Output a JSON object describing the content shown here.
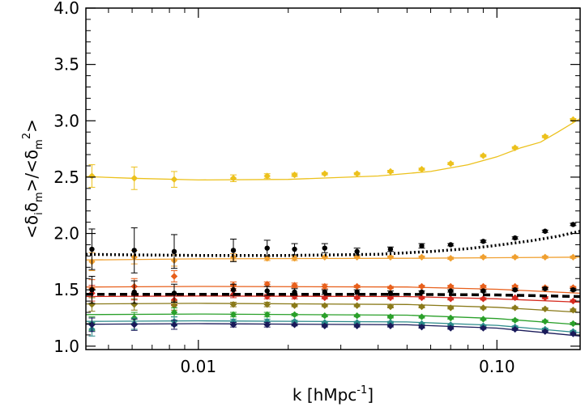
{
  "chart_data": {
    "type": "scatter",
    "title": "",
    "xlabel": {
      "main": "k [hMpc",
      "sup": "-1",
      "close": "]"
    },
    "ylabel": "<δ_i δ_m>/<δ_m^2>",
    "xscale": "log",
    "xlim": [
      0.0042,
      0.19
    ],
    "ylim": [
      0.97,
      4.0
    ],
    "xticks": [
      {
        "value": 0.01,
        "label": "0.01"
      },
      {
        "value": 0.1,
        "label": "0.10"
      }
    ],
    "yticks": [
      {
        "value": 1.0,
        "label": "1.0"
      },
      {
        "value": 1.5,
        "label": "1.5"
      },
      {
        "value": 2.0,
        "label": "2.0"
      },
      {
        "value": 2.5,
        "label": "2.5"
      },
      {
        "value": 3.0,
        "label": "3.0"
      },
      {
        "value": 3.5,
        "label": "3.5"
      },
      {
        "value": 4.0,
        "label": "4.0"
      }
    ],
    "grid": false,
    "legend": "none",
    "k_points": [
      0.0044,
      0.0061,
      0.0083,
      0.0131,
      0.017,
      0.021,
      0.0265,
      0.034,
      0.044,
      0.056,
      0.07,
      0.09,
      0.115,
      0.145,
      0.18
    ],
    "series": [
      {
        "color": "#ecc11c",
        "marker": "diamond",
        "values": [
          2.51,
          2.49,
          2.48,
          2.49,
          2.51,
          2.52,
          2.53,
          2.53,
          2.55,
          2.57,
          2.62,
          2.69,
          2.76,
          2.86,
          3.01
        ],
        "errors": [
          0.1,
          0.1,
          0.07,
          0.03,
          0.02,
          0.015,
          0.01,
          0.01,
          0.01,
          0.01,
          0.01,
          0.01,
          0.01,
          0.01,
          0.01
        ],
        "model_k": [
          0.0042,
          0.006,
          0.01,
          0.02,
          0.04,
          0.06,
          0.08,
          0.1,
          0.12,
          0.14,
          0.16,
          0.19
        ],
        "model_values": [
          2.505,
          2.49,
          2.475,
          2.48,
          2.51,
          2.55,
          2.61,
          2.68,
          2.76,
          2.81,
          2.9,
          3.02
        ]
      },
      {
        "color": "#f0a030",
        "marker": "diamond",
        "values": [
          1.75,
          1.79,
          1.76,
          1.79,
          1.78,
          1.78,
          1.79,
          1.79,
          1.79,
          1.79,
          1.78,
          1.79,
          1.79,
          1.79,
          1.79
        ],
        "errors": [
          0.08,
          0.06,
          0.05,
          0.03,
          0.02,
          0.02,
          0.01,
          0.01,
          0.01,
          0.01,
          0.01,
          0.01,
          0.01,
          0.01,
          0.01
        ],
        "model_k": [
          0.0042,
          0.01,
          0.05,
          0.1,
          0.19
        ],
        "model_values": [
          1.765,
          1.775,
          1.78,
          1.785,
          1.79
        ]
      },
      {
        "color": "#e8601c",
        "marker": "diamond",
        "values": [
          1.51,
          1.53,
          1.62,
          1.54,
          1.55,
          1.54,
          1.53,
          1.53,
          1.52,
          1.53,
          1.53,
          1.53,
          1.53,
          1.52,
          1.52
        ],
        "errors": [
          0.08,
          0.07,
          0.05,
          0.03,
          0.02,
          0.02,
          0.02,
          0.01,
          0.01,
          0.01,
          0.01,
          0.01,
          0.01,
          0.01,
          0.01
        ],
        "model_k": [
          0.0042,
          0.01,
          0.05,
          0.1,
          0.19
        ],
        "model_values": [
          1.525,
          1.53,
          1.525,
          1.505,
          1.47
        ]
      },
      {
        "color": "#d62b1f",
        "marker": "diamond",
        "values": [
          1.47,
          1.47,
          1.41,
          1.46,
          1.44,
          1.44,
          1.43,
          1.43,
          1.43,
          1.43,
          1.42,
          1.42,
          1.43,
          1.43,
          1.4
        ],
        "errors": [
          0.07,
          0.06,
          0.04,
          0.03,
          0.02,
          0.02,
          0.01,
          0.01,
          0.01,
          0.01,
          0.01,
          0.01,
          0.01,
          0.01,
          0.01
        ],
        "model_k": [
          0.0042,
          0.01,
          0.05,
          0.1,
          0.19
        ],
        "model_values": [
          1.44,
          1.445,
          1.44,
          1.42,
          1.39
        ]
      },
      {
        "color": "#8a7a1a",
        "marker": "diamond",
        "values": [
          1.37,
          1.37,
          1.36,
          1.37,
          1.37,
          1.36,
          1.36,
          1.36,
          1.35,
          1.35,
          1.34,
          1.34,
          1.34,
          1.33,
          1.32
        ],
        "errors": [
          0.06,
          0.05,
          0.04,
          0.02,
          0.02,
          0.01,
          0.01,
          0.01,
          0.01,
          0.01,
          0.01,
          0.01,
          0.01,
          0.01,
          0.01
        ],
        "model_k": [
          0.0042,
          0.01,
          0.05,
          0.1,
          0.19
        ],
        "model_values": [
          1.375,
          1.38,
          1.37,
          1.345,
          1.3
        ]
      },
      {
        "color": "#2aa02a",
        "marker": "diamond",
        "values": [
          1.2,
          1.25,
          1.3,
          1.28,
          1.28,
          1.28,
          1.27,
          1.27,
          1.26,
          1.26,
          1.25,
          1.24,
          1.23,
          1.22,
          1.2
        ],
        "errors": [
          0.06,
          0.05,
          0.04,
          0.02,
          0.02,
          0.01,
          0.01,
          0.01,
          0.01,
          0.01,
          0.01,
          0.01,
          0.01,
          0.01,
          0.01
        ],
        "model_k": [
          0.0042,
          0.01,
          0.05,
          0.1,
          0.19
        ],
        "model_values": [
          1.28,
          1.285,
          1.275,
          1.245,
          1.19
        ]
      },
      {
        "color": "#2a8a8a",
        "marker": "diamond",
        "values": [
          1.15,
          1.2,
          1.22,
          1.22,
          1.22,
          1.22,
          1.21,
          1.21,
          1.21,
          1.2,
          1.19,
          1.18,
          1.17,
          1.15,
          1.13
        ],
        "errors": [
          0.06,
          0.05,
          0.04,
          0.02,
          0.02,
          0.01,
          0.01,
          0.01,
          0.01,
          0.01,
          0.01,
          0.01,
          0.01,
          0.01,
          0.01
        ],
        "model_k": [
          0.0042,
          0.01,
          0.05,
          0.1,
          0.19
        ],
        "model_values": [
          1.22,
          1.225,
          1.215,
          1.185,
          1.12
        ]
      },
      {
        "color": "#1a1a5a",
        "marker": "diamond",
        "values": [
          1.19,
          1.19,
          1.19,
          1.19,
          1.19,
          1.19,
          1.18,
          1.18,
          1.18,
          1.17,
          1.16,
          1.16,
          1.15,
          1.13,
          1.11
        ],
        "errors": [
          0.06,
          0.05,
          0.04,
          0.02,
          0.02,
          0.01,
          0.01,
          0.01,
          0.01,
          0.01,
          0.01,
          0.01,
          0.01,
          0.01,
          0.01
        ],
        "model_k": [
          0.0042,
          0.01,
          0.05,
          0.1,
          0.19
        ],
        "model_values": [
          1.195,
          1.2,
          1.19,
          1.16,
          1.09
        ]
      },
      {
        "color": "#000000",
        "marker": "circle",
        "values": [
          1.86,
          1.85,
          1.84,
          1.85,
          1.87,
          1.86,
          1.87,
          1.84,
          1.86,
          1.89,
          1.9,
          1.93,
          1.96,
          2.02,
          2.08
        ],
        "errors": [
          0.18,
          0.2,
          0.15,
          0.1,
          0.07,
          0.05,
          0.04,
          0.03,
          0.02,
          0.02,
          0.01,
          0.01,
          0.01,
          0.01,
          0.01
        ],
        "model_k": [
          0.0042,
          0.006,
          0.01,
          0.02,
          0.04,
          0.06,
          0.08,
          0.1,
          0.13,
          0.16,
          0.19
        ],
        "model_values": [
          1.815,
          1.81,
          1.805,
          1.805,
          1.815,
          1.84,
          1.865,
          1.895,
          1.935,
          1.975,
          2.02
        ],
        "model_style": "dotted"
      },
      {
        "color": "#000000",
        "marker": "circle",
        "values": [
          1.5,
          1.48,
          1.47,
          1.5,
          1.49,
          1.48,
          1.48,
          1.48,
          1.47,
          1.48,
          1.49,
          1.49,
          1.5,
          1.51,
          1.5
        ],
        "errors": [
          0.12,
          0.1,
          0.08,
          0.05,
          0.04,
          0.03,
          0.02,
          0.02,
          0.02,
          0.01,
          0.01,
          0.01,
          0.01,
          0.01,
          0.01
        ],
        "model_k": [
          0.0042,
          0.01,
          0.05,
          0.1,
          0.19
        ],
        "model_values": [
          1.46,
          1.46,
          1.46,
          1.455,
          1.44
        ],
        "model_style": "dashed"
      }
    ]
  }
}
